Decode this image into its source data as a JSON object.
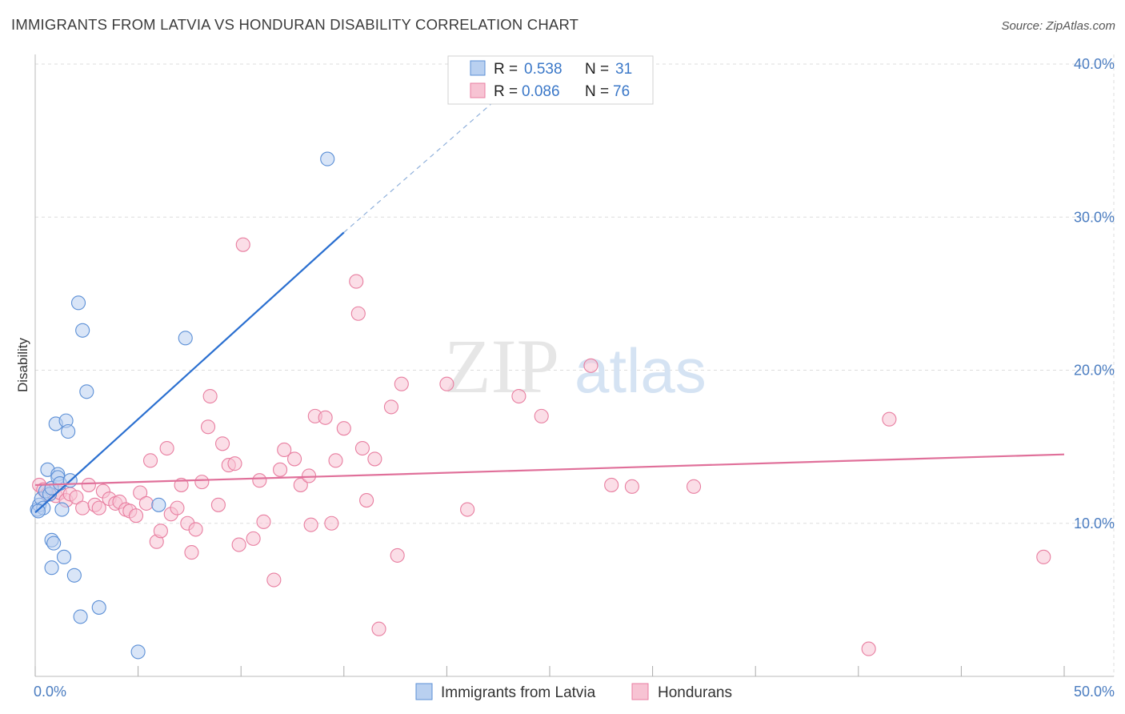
{
  "header": {
    "title": "IMMIGRANTS FROM LATVIA VS HONDURAN DISABILITY CORRELATION CHART",
    "source": "Source: ZipAtlas.com"
  },
  "watermark": {
    "zip": "ZIP",
    "atlas": "atlas"
  },
  "colors": {
    "latvia": "#5b8fd6",
    "latvia_fill": "#b9d0f0",
    "latvia_line": "#2a6fd0",
    "hondurans": "#e87ea0",
    "hondurans_fill": "#f7c3d3",
    "hondurans_line": "#e0709a",
    "tick": "#4a7cc0",
    "grid": "#dddddd"
  },
  "legend": {
    "rows": [
      {
        "r_label": "R = ",
        "r_value": "0.538",
        "n_label": "N = ",
        "n_value": "31"
      },
      {
        "r_label": "R = ",
        "r_value": "0.086",
        "n_label": "N = ",
        "n_value": "76"
      }
    ]
  },
  "chart_data": {
    "type": "scatter",
    "ylabel": "Disability",
    "xlim": [
      0,
      50
    ],
    "ylim": [
      0,
      40
    ],
    "x_tick_labels": [
      "0.0%",
      "50.0%"
    ],
    "y_ticks": [
      10,
      20,
      30,
      40
    ],
    "y_tick_labels": [
      "10.0%",
      "20.0%",
      "30.0%",
      "40.0%"
    ],
    "grid": true,
    "legend_position": "top-center",
    "series": [
      {
        "name": "Immigrants from Latvia",
        "r": 0.538,
        "n": 31,
        "trend": {
          "x0": 0,
          "y0": 10.7,
          "x1": 15,
          "y1": 29,
          "dashed_to_x": 24.8,
          "dashed_to_y": 40.5
        },
        "points": [
          [
            0.1,
            10.9
          ],
          [
            0.2,
            11.2
          ],
          [
            0.3,
            11.6
          ],
          [
            0.4,
            11.0
          ],
          [
            0.5,
            12.1
          ],
          [
            0.6,
            13.5
          ],
          [
            0.7,
            11.9
          ],
          [
            0.8,
            12.3
          ],
          [
            0.8,
            8.9
          ],
          [
            0.8,
            7.1
          ],
          [
            0.9,
            8.7
          ],
          [
            1.0,
            16.5
          ],
          [
            1.1,
            13.2
          ],
          [
            1.1,
            13.0
          ],
          [
            1.2,
            12.6
          ],
          [
            1.3,
            10.9
          ],
          [
            1.4,
            7.8
          ],
          [
            1.5,
            16.7
          ],
          [
            1.6,
            16.0
          ],
          [
            1.7,
            12.8
          ],
          [
            1.9,
            6.6
          ],
          [
            2.1,
            24.4
          ],
          [
            2.2,
            3.9
          ],
          [
            2.3,
            22.6
          ],
          [
            2.5,
            18.6
          ],
          [
            3.1,
            4.5
          ],
          [
            5.0,
            1.6
          ],
          [
            6.0,
            11.2
          ],
          [
            7.3,
            22.1
          ],
          [
            14.2,
            33.8
          ],
          [
            0.15,
            10.8
          ]
        ]
      },
      {
        "name": "Hondurans",
        "r": 0.086,
        "n": 76,
        "trend": {
          "x0": 0,
          "y0": 12.5,
          "x1": 50,
          "y1": 14.5
        },
        "points": [
          [
            0.2,
            12.5
          ],
          [
            0.4,
            12.2
          ],
          [
            0.6,
            11.9
          ],
          [
            0.8,
            12.3
          ],
          [
            1.0,
            11.8
          ],
          [
            1.2,
            12.0
          ],
          [
            1.5,
            11.5
          ],
          [
            1.7,
            11.9
          ],
          [
            2.0,
            11.7
          ],
          [
            2.3,
            11.0
          ],
          [
            2.6,
            12.5
          ],
          [
            2.9,
            11.2
          ],
          [
            3.1,
            11.0
          ],
          [
            3.3,
            12.1
          ],
          [
            3.6,
            11.6
          ],
          [
            3.9,
            11.3
          ],
          [
            4.1,
            11.4
          ],
          [
            4.4,
            10.9
          ],
          [
            4.6,
            10.8
          ],
          [
            4.9,
            10.5
          ],
          [
            5.1,
            12.0
          ],
          [
            5.4,
            11.3
          ],
          [
            5.6,
            14.1
          ],
          [
            5.9,
            8.8
          ],
          [
            6.1,
            9.5
          ],
          [
            6.4,
            14.9
          ],
          [
            6.6,
            10.6
          ],
          [
            6.9,
            11.0
          ],
          [
            7.1,
            12.5
          ],
          [
            7.4,
            10.0
          ],
          [
            7.6,
            8.1
          ],
          [
            7.8,
            9.6
          ],
          [
            8.1,
            12.7
          ],
          [
            8.4,
            16.3
          ],
          [
            8.5,
            18.3
          ],
          [
            8.9,
            11.2
          ],
          [
            9.1,
            15.2
          ],
          [
            9.4,
            13.8
          ],
          [
            9.7,
            13.9
          ],
          [
            9.9,
            8.6
          ],
          [
            10.1,
            28.2
          ],
          [
            10.6,
            9.0
          ],
          [
            10.9,
            12.8
          ],
          [
            11.1,
            10.1
          ],
          [
            11.6,
            6.3
          ],
          [
            11.9,
            13.5
          ],
          [
            12.1,
            14.8
          ],
          [
            12.6,
            14.2
          ],
          [
            12.9,
            12.5
          ],
          [
            13.3,
            13.1
          ],
          [
            13.6,
            17.0
          ],
          [
            14.1,
            16.9
          ],
          [
            14.4,
            10.0
          ],
          [
            14.6,
            14.1
          ],
          [
            15.0,
            16.2
          ],
          [
            15.6,
            25.8
          ],
          [
            15.7,
            23.7
          ],
          [
            15.9,
            14.9
          ],
          [
            16.1,
            11.5
          ],
          [
            16.5,
            14.2
          ],
          [
            16.7,
            3.1
          ],
          [
            17.3,
            17.6
          ],
          [
            17.6,
            7.9
          ],
          [
            17.8,
            19.1
          ],
          [
            20.0,
            19.1
          ],
          [
            21.0,
            10.9
          ],
          [
            23.5,
            18.3
          ],
          [
            24.6,
            17.0
          ],
          [
            27.0,
            20.3
          ],
          [
            28.0,
            12.5
          ],
          [
            29.0,
            12.4
          ],
          [
            32.0,
            12.4
          ],
          [
            40.5,
            1.8
          ],
          [
            41.5,
            16.8
          ],
          [
            49.0,
            7.8
          ],
          [
            13.4,
            9.9
          ]
        ]
      }
    ]
  }
}
